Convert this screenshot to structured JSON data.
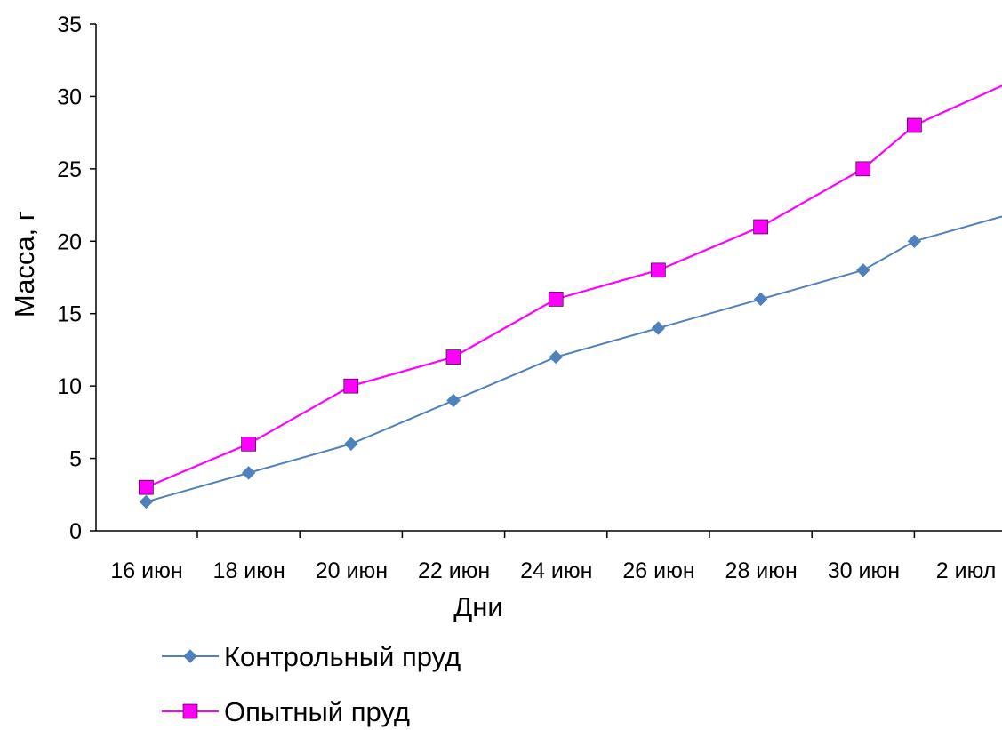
{
  "chart_data": {
    "type": "line",
    "title": "",
    "xlabel": "Дни",
    "ylabel": "Масса, г",
    "categories": [
      "16 июн",
      "18 июн",
      "20 июн",
      "22 июн",
      "24 июн",
      "26 июн",
      "28 июн",
      "30 июн",
      "2 июл"
    ],
    "ylim": [
      0,
      35
    ],
    "yticks": [
      0,
      5,
      10,
      15,
      20,
      25,
      30,
      35
    ],
    "grid": false,
    "legend_position": "bottom",
    "x": [
      "2000-06-16",
      "2000-06-18",
      "2000-06-20",
      "2000-06-22",
      "2000-06-24",
      "2000-06-26",
      "2000-06-28",
      "2000-06-30",
      "2000-07-01",
      "2000-07-03"
    ],
    "series": [
      {
        "name": "Контрольный пруд",
        "color": "#4F81BD",
        "marker": "diamond",
        "values": [
          2,
          4,
          6,
          9,
          12,
          14,
          16,
          18,
          20,
          22
        ]
      },
      {
        "name": "Опытный пруд",
        "color": "#FF00FF",
        "marker": "square",
        "values": [
          3,
          6,
          10,
          12,
          16,
          18,
          21,
          25,
          28,
          31.2
        ]
      }
    ]
  }
}
